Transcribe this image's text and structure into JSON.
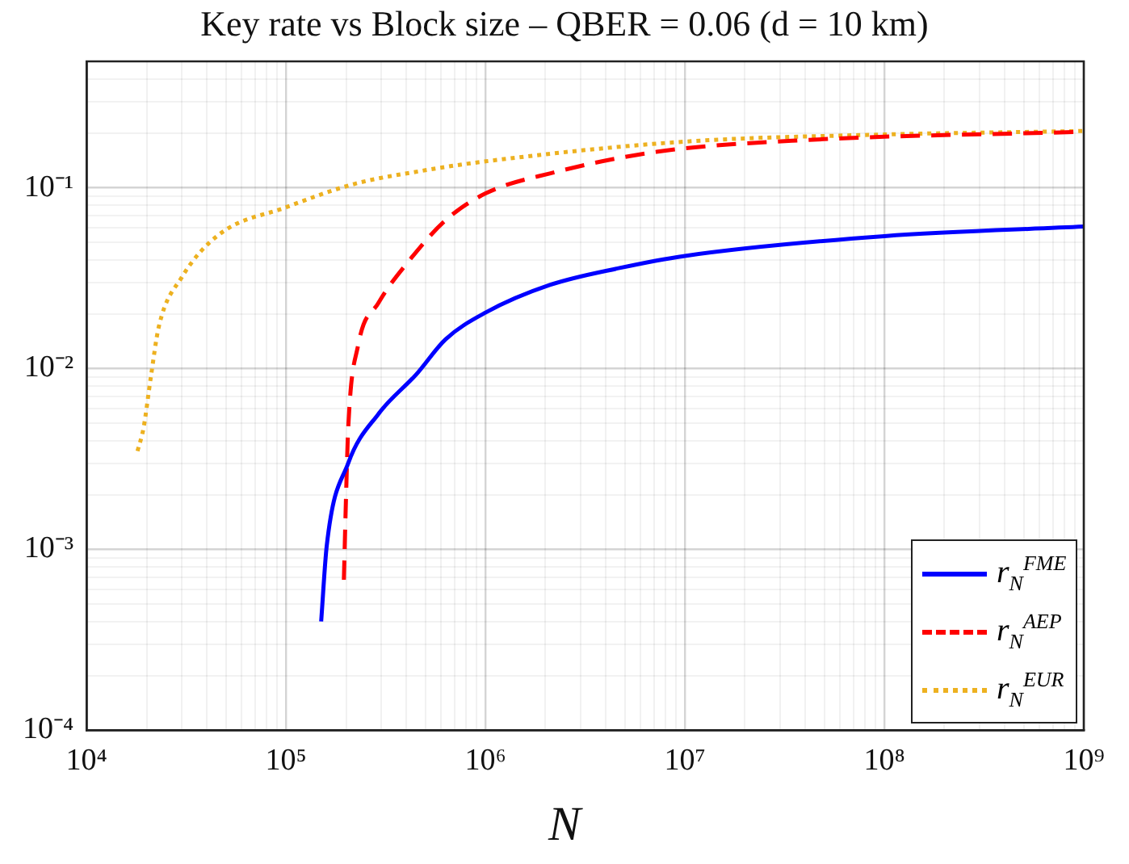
{
  "chart_data": {
    "type": "line",
    "title": "Key rate vs Block size – QBER  = 0.06 (d = 10 km)",
    "xlabel": "N",
    "log": "xy",
    "grid": true,
    "legend": "bottom right",
    "marker": "none",
    "xlim": [
      10000,
      1000000000
    ],
    "ylim": [
      0.0001,
      0.5
    ],
    "xticks": [
      {
        "value": 10000,
        "label": "10⁴"
      },
      {
        "value": 20000,
        "label": null
      },
      {
        "value": 30000,
        "label": null
      },
      {
        "value": 40000,
        "label": null
      },
      {
        "value": 50000,
        "label": null
      },
      {
        "value": 60000,
        "label": null
      },
      {
        "value": 70000,
        "label": null
      },
      {
        "value": 80000,
        "label": null
      },
      {
        "value": 90000,
        "label": null
      },
      {
        "value": 100000,
        "label": "10⁵"
      },
      {
        "value": 200000,
        "label": null
      },
      {
        "value": 300000,
        "label": null
      },
      {
        "value": 400000,
        "label": null
      },
      {
        "value": 500000,
        "label": null
      },
      {
        "value": 600000,
        "label": null
      },
      {
        "value": 700000,
        "label": null
      },
      {
        "value": 800000,
        "label": null
      },
      {
        "value": 900000,
        "label": null
      },
      {
        "value": 1000000,
        "label": "10⁶"
      },
      {
        "value": 2000000,
        "label": null
      },
      {
        "value": 3000000,
        "label": null
      },
      {
        "value": 4000000,
        "label": null
      },
      {
        "value": 5000000,
        "label": null
      },
      {
        "value": 6000000,
        "label": null
      },
      {
        "value": 7000000,
        "label": null
      },
      {
        "value": 8000000,
        "label": null
      },
      {
        "value": 9000000,
        "label": null
      },
      {
        "value": 10000000,
        "label": "10⁷"
      },
      {
        "value": 20000000,
        "label": null
      },
      {
        "value": 30000000,
        "label": null
      },
      {
        "value": 40000000,
        "label": null
      },
      {
        "value": 50000000,
        "label": null
      },
      {
        "value": 60000000,
        "label": null
      },
      {
        "value": 70000000,
        "label": null
      },
      {
        "value": 80000000,
        "label": null
      },
      {
        "value": 90000000,
        "label": null
      },
      {
        "value": 100000000,
        "label": "10⁸"
      },
      {
        "value": 200000000,
        "label": null
      },
      {
        "value": 300000000,
        "label": null
      },
      {
        "value": 400000000,
        "label": null
      },
      {
        "value": 500000000,
        "label": null
      },
      {
        "value": 600000000,
        "label": null
      },
      {
        "value": 700000000,
        "label": null
      },
      {
        "value": 800000000,
        "label": null
      },
      {
        "value": 900000000,
        "label": null
      },
      {
        "value": 1000000000,
        "label": "10⁹"
      }
    ],
    "yticks": [
      {
        "value": 0.0001,
        "label": "10⁻⁴"
      },
      {
        "value": 0.0002,
        "label": null
      },
      {
        "value": 0.0003,
        "label": null
      },
      {
        "value": 0.0004,
        "label": null
      },
      {
        "value": 0.0005,
        "label": null
      },
      {
        "value": 0.0006,
        "label": null
      },
      {
        "value": 0.0007,
        "label": null
      },
      {
        "value": 0.0008,
        "label": null
      },
      {
        "value": 0.0009,
        "label": null
      },
      {
        "value": 0.001,
        "label": "10⁻³"
      },
      {
        "value": 0.002,
        "label": null
      },
      {
        "value": 0.003,
        "label": null
      },
      {
        "value": 0.004,
        "label": null
      },
      {
        "value": 0.005,
        "label": null
      },
      {
        "value": 0.006,
        "label": null
      },
      {
        "value": 0.007,
        "label": null
      },
      {
        "value": 0.008,
        "label": null
      },
      {
        "value": 0.009,
        "label": null
      },
      {
        "value": 0.01,
        "label": "10⁻²"
      },
      {
        "value": 0.02,
        "label": null
      },
      {
        "value": 0.03,
        "label": null
      },
      {
        "value": 0.04,
        "label": null
      },
      {
        "value": 0.05,
        "label": null
      },
      {
        "value": 0.06,
        "label": null
      },
      {
        "value": 0.07,
        "label": null
      },
      {
        "value": 0.08,
        "label": null
      },
      {
        "value": 0.09,
        "label": null
      },
      {
        "value": 0.1,
        "label": "10⁻¹"
      },
      {
        "value": 0.2,
        "label": null
      },
      {
        "value": 0.3,
        "label": null
      },
      {
        "value": 0.4,
        "label": null
      },
      {
        "value": 0.5,
        "label": null
      }
    ],
    "series": [
      {
        "name": "r$_{N}$$^{FME}$",
        "color": "#0000ff",
        "line_style": "solid",
        "x": [
          150000,
          160000,
          205000,
          290000,
          450000,
          630000,
          1000000,
          2100000,
          4700000,
          10000000,
          100000000,
          1000000000
        ],
        "values": [
          0.0004,
          0.00105,
          0.003,
          0.0056,
          0.0093,
          0.0145,
          0.0204,
          0.029,
          0.036,
          0.042,
          0.054,
          0.061
        ]
      },
      {
        "name": "r$_{N}$$^{AEP}$",
        "color": "#ff0000",
        "line_style": "dashed",
        "x": [
          195000,
          200000,
          205000,
          230000,
          290000,
          410000,
          630000,
          1000000,
          2100000,
          7200000,
          42000000,
          1000000000
        ],
        "values": [
          0.00068,
          0.002,
          0.0047,
          0.0135,
          0.023,
          0.039,
          0.066,
          0.093,
          0.12,
          0.158,
          0.184,
          0.204
        ]
      },
      {
        "name": "r$_{N}$$^{EUR}$",
        "color": "#edb120",
        "line_style": "dotted",
        "x": [
          18000,
          19300,
          21000,
          23000,
          30000,
          46000,
          100000,
          220000,
          500000,
          1000000,
          10000000,
          100000000,
          1000000000
        ],
        "values": [
          0.0035,
          0.0047,
          0.009,
          0.017,
          0.032,
          0.055,
          0.078,
          0.105,
          0.125,
          0.14,
          0.18,
          0.197,
          0.206
        ]
      }
    ]
  }
}
